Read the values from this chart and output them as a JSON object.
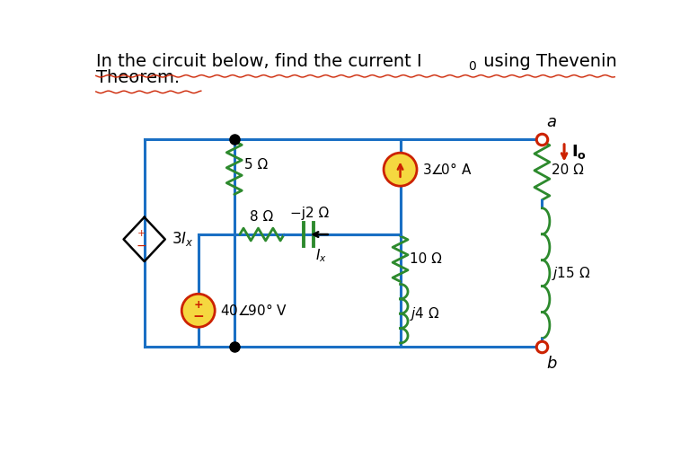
{
  "bg_color": "#ffffff",
  "wire_color": "#1a6fc4",
  "green_color": "#2d8a2d",
  "red_color": "#cc2200",
  "black_color": "#111111",
  "source_fill": "#f5d840",
  "source_stroke": "#cc2200",
  "title_part1": "In the circuit below, find the current I",
  "title_sub0": "0",
  "title_part2": " using Thevenin",
  "title_line2": "Theorem.",
  "label_5ohm": "5 Ω",
  "label_8ohm": "8 Ω",
  "label_m2ohm": "−j2 Ω",
  "label_10ohm": "10 Ω",
  "label_j4ohm": "j4 Ω",
  "label_20ohm": "20 Ω",
  "label_j15ohm": "j15 Ω",
  "label_3Ix": "3I",
  "label_Ix_arrow": "I",
  "label_cs": "3⁄0° A",
  "label_vs": "40⁄0/90° V",
  "label_a": "a",
  "label_b": "b",
  "label_Io": "I"
}
